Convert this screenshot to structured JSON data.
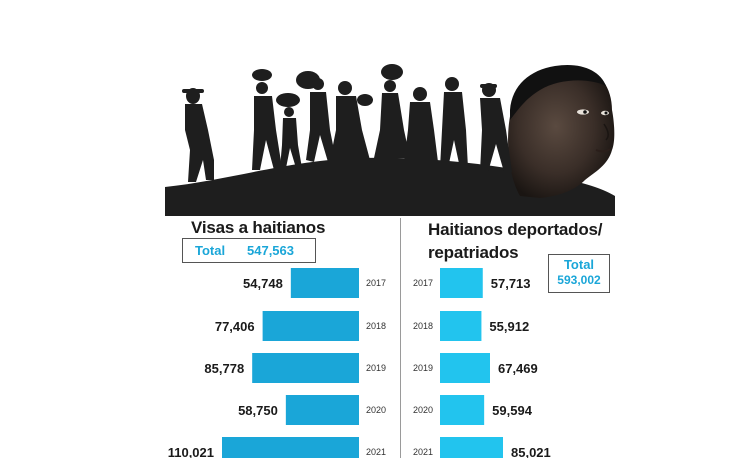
{
  "left_title": "Visas a haitianos",
  "left_total_label": "Total",
  "left_total_value": "547,563",
  "right_title_line1": "Haitianos deportados/",
  "right_title_line2": "repatriados",
  "right_total_label": "Total",
  "right_total_value": "593,002",
  "colors": {
    "bar_left": "#1aa6d8",
    "bar_right": "#22c4ee",
    "silhouette": "#1e1e1e"
  },
  "chart_data": [
    {
      "type": "bar",
      "orientation": "horizontal",
      "title": "Visas a haitianos",
      "categories": [
        "2017",
        "2018",
        "2019",
        "2020",
        "2021"
      ],
      "labels": [
        "54,748",
        "77,406",
        "85,778",
        "58,750",
        "110,021"
      ],
      "values": [
        54748,
        77406,
        85778,
        58750,
        110021
      ],
      "total": 547563,
      "direction": "right-to-left"
    },
    {
      "type": "bar",
      "orientation": "horizontal",
      "title": "Haitianos deportados/repatriados",
      "categories": [
        "2017",
        "2018",
        "2019",
        "2020",
        "2021"
      ],
      "labels": [
        "57,713",
        "55,912",
        "67,469",
        "59,594",
        "85,021"
      ],
      "values": [
        57713,
        55912,
        67469,
        59594,
        85021
      ],
      "total": 593002,
      "direction": "left-to-right"
    }
  ]
}
